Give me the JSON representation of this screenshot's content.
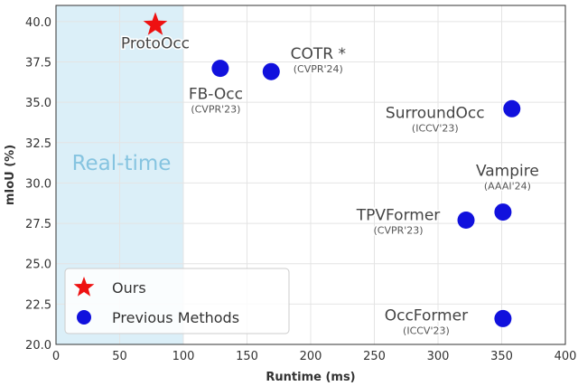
{
  "chart_data": {
    "type": "scatter",
    "xlabel": "Runtime (ms)",
    "ylabel": "mIoU (%)",
    "xlim": [
      0,
      400
    ],
    "ylim": [
      20,
      41
    ],
    "x_ticks": [
      "0",
      "50",
      "100",
      "150",
      "200",
      "250",
      "300",
      "350",
      "400"
    ],
    "y_ticks": [
      "20.0",
      "22.5",
      "25.0",
      "27.5",
      "30.0",
      "32.5",
      "35.0",
      "37.5",
      "40.0"
    ],
    "grid": true,
    "shaded_region": {
      "label": "Real-time",
      "x_range": [
        0,
        100
      ]
    },
    "legend": {
      "placement": "bottom-left",
      "entries": [
        {
          "label": "Ours",
          "marker": "star"
        },
        {
          "label": "Previous Methods",
          "marker": "circle"
        }
      ]
    },
    "series": [
      {
        "name": "Ours",
        "marker": "star",
        "points": [
          {
            "label": "ProtoOcc",
            "venue": "",
            "x": 78,
            "y": 39.8
          }
        ]
      },
      {
        "name": "Previous Methods",
        "marker": "circle",
        "points": [
          {
            "label": "FB-Occ",
            "venue": "(CVPR'23)",
            "x": 129,
            "y": 37.1
          },
          {
            "label": "COTR *",
            "venue": "(CVPR'24)",
            "x": 169,
            "y": 36.9
          },
          {
            "label": "SurroundOcc",
            "venue": "(ICCV'23)",
            "x": 358,
            "y": 34.6
          },
          {
            "label": "Vampire",
            "venue": "(AAAI'24)",
            "x": 351,
            "y": 28.2
          },
          {
            "label": "TPVFormer",
            "venue": "(CVPR'23)",
            "x": 322,
            "y": 27.7
          },
          {
            "label": "OccFormer",
            "venue": "(ICCV'23)",
            "x": 351,
            "y": 21.6
          }
        ]
      }
    ],
    "colors": {
      "ours": "#ee1111",
      "previous": "#1111dd",
      "region": "#dbeff8"
    }
  }
}
